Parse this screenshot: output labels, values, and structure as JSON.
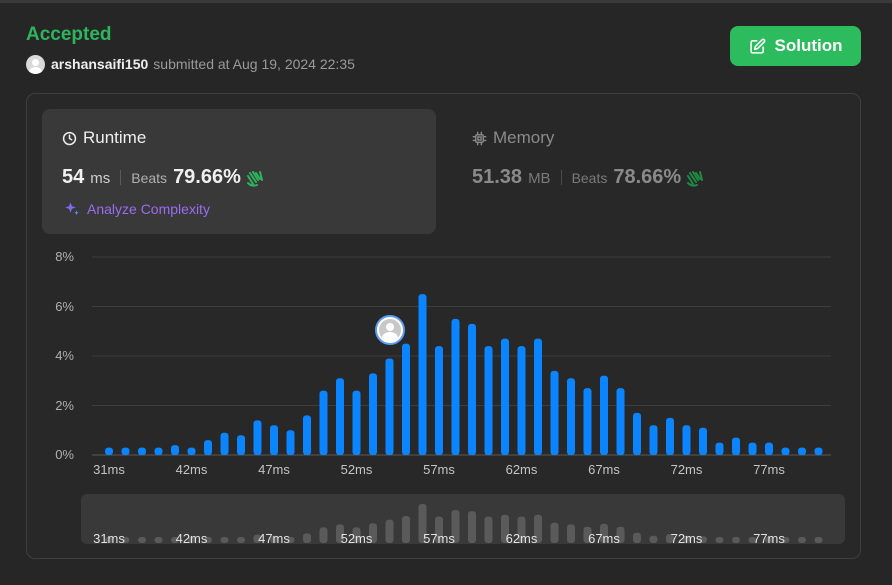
{
  "header": {
    "status": "Accepted",
    "username": "arshansaifi150",
    "submitted_text": "submitted at Aug 19, 2024 22:35",
    "solution_label": "Solution"
  },
  "runtime": {
    "title": "Runtime",
    "value": "54",
    "unit": "ms",
    "beats_label": "Beats",
    "beats": "79.66%",
    "analyze_label": "Analyze Complexity"
  },
  "memory": {
    "title": "Memory",
    "value": "51.38",
    "unit": "MB",
    "beats_label": "Beats",
    "beats": "78.66%"
  },
  "colors": {
    "accepted": "#2db55d",
    "bar": "#0a84ff",
    "mini_bar": "#5a5a5a",
    "analyze": "#9a6cf2"
  },
  "chart_data": {
    "type": "bar",
    "x_ticks": [
      "31ms",
      "42ms",
      "47ms",
      "52ms",
      "57ms",
      "62ms",
      "67ms",
      "72ms",
      "77ms"
    ],
    "y_ticks": [
      "8%",
      "6%",
      "4%",
      "2%",
      "0%"
    ],
    "ylim": [
      0,
      8
    ],
    "values": [
      0.3,
      0.3,
      0.3,
      0.3,
      0.4,
      0.3,
      0.6,
      0.9,
      0.8,
      1.4,
      1.2,
      1.0,
      1.6,
      2.6,
      3.1,
      2.6,
      3.3,
      3.9,
      4.5,
      6.5,
      4.4,
      5.5,
      5.3,
      4.4,
      4.7,
      4.4,
      4.7,
      3.4,
      3.1,
      2.7,
      3.2,
      2.7,
      1.7,
      1.2,
      1.5,
      1.2,
      1.1,
      0.5,
      0.7,
      0.5,
      0.5,
      0.3,
      0.3,
      0.3
    ],
    "user_bar_index": 17,
    "grid": true
  }
}
